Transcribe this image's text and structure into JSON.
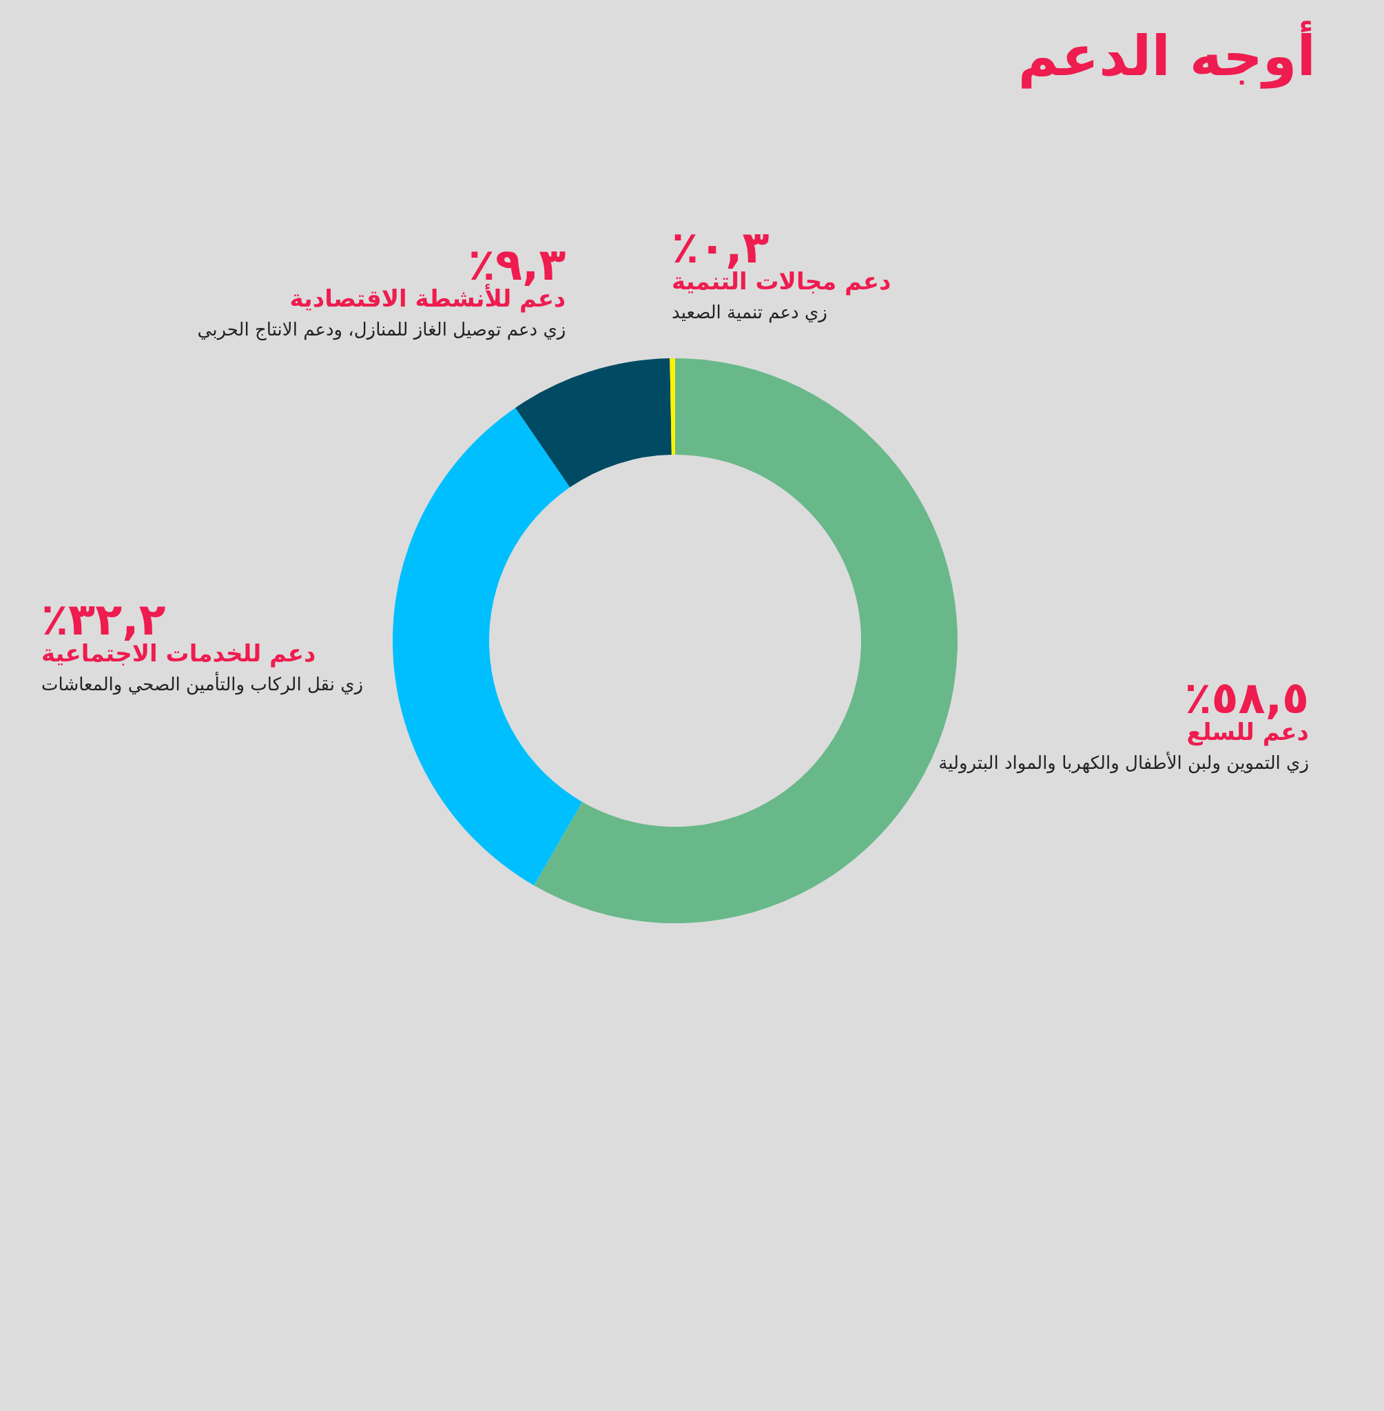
{
  "chart_data": {
    "type": "donut",
    "title": "أوجه الدعم",
    "categories": [
      "دعم للسلع",
      "دعم للخدمات الاجتماعية",
      "دعم للأنشطة الاقتصادية",
      "دعم مجالات التنمية"
    ],
    "values": [
      58.5,
      32.2,
      9.3,
      0.3
    ],
    "colors": [
      "#69b88a",
      "#00bfff",
      "#004a63",
      "#fff200"
    ],
    "value_labels": [
      "٪٥٨,٥",
      "٪٣٢,٢",
      "٪٩,٣",
      "٪٠,٣"
    ],
    "annotations": [
      "زي التموين ولبن الأطفال والكهربا والمواد البترولية",
      "زي نقل الركاب والتأمين الصحي والمعاشات",
      "زي دعم توصيل الغاز للمنازل، ودعم الانتاج الحربي",
      "زي دعم تنمية الصعيد"
    ]
  }
}
